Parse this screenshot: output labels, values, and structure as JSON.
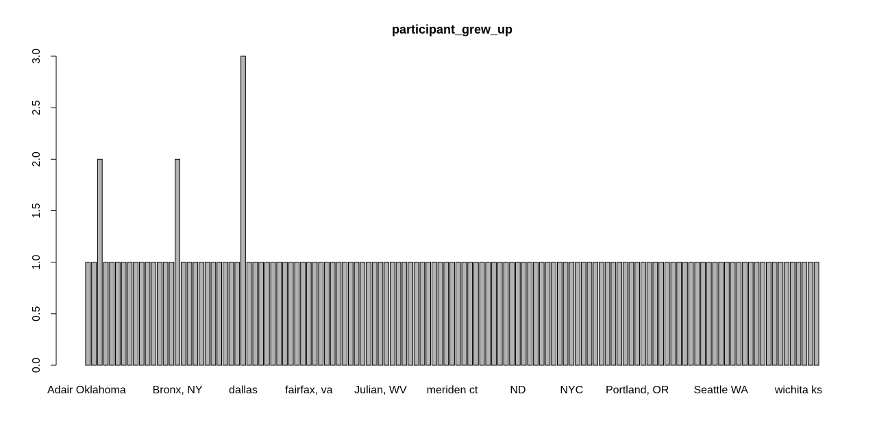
{
  "chart_data": {
    "type": "bar",
    "title": "participant_grew_up",
    "xlabel": "",
    "ylabel": "",
    "ylim": [
      0,
      3
    ],
    "yticks": [
      "0.0",
      "0.5",
      "1.0",
      "1.5",
      "2.0",
      "2.5",
      "3.0"
    ],
    "x_tick_labels": [
      {
        "index": 0,
        "label": "Adair Oklahoma"
      },
      {
        "index": 15,
        "label": "Bronx, NY"
      },
      {
        "index": 26,
        "label": "dallas"
      },
      {
        "index": 37,
        "label": "fairfax, va"
      },
      {
        "index": 49,
        "label": "Julian, WV"
      },
      {
        "index": 61,
        "label": "meriden ct"
      },
      {
        "index": 72,
        "label": "ND"
      },
      {
        "index": 81,
        "label": "NYC"
      },
      {
        "index": 92,
        "label": "Portland, OR"
      },
      {
        "index": 106,
        "label": "Seattle WA"
      },
      {
        "index": 119,
        "label": "wichita ks"
      }
    ],
    "values": [
      1,
      1,
      2,
      1,
      1,
      1,
      1,
      1,
      1,
      1,
      1,
      1,
      1,
      1,
      1,
      2,
      1,
      1,
      1,
      1,
      1,
      1,
      1,
      1,
      1,
      1,
      3,
      1,
      1,
      1,
      1,
      1,
      1,
      1,
      1,
      1,
      1,
      1,
      1,
      1,
      1,
      1,
      1,
      1,
      1,
      1,
      1,
      1,
      1,
      1,
      1,
      1,
      1,
      1,
      1,
      1,
      1,
      1,
      1,
      1,
      1,
      1,
      1,
      1,
      1,
      1,
      1,
      1,
      1,
      1,
      1,
      1,
      1,
      1,
      1,
      1,
      1,
      1,
      1,
      1,
      1,
      1,
      1,
      1,
      1,
      1,
      1,
      1,
      1,
      1,
      1,
      1,
      1,
      1,
      1,
      1,
      1,
      1,
      1,
      1,
      1,
      1,
      1,
      1,
      1,
      1,
      1,
      1,
      1,
      1,
      1,
      1,
      1,
      1,
      1,
      1,
      1,
      1,
      1,
      1,
      1,
      1,
      1
    ],
    "bar_color": "#b3b3b3",
    "bar_border_color": "#000000",
    "grid": false,
    "legend": "none"
  }
}
